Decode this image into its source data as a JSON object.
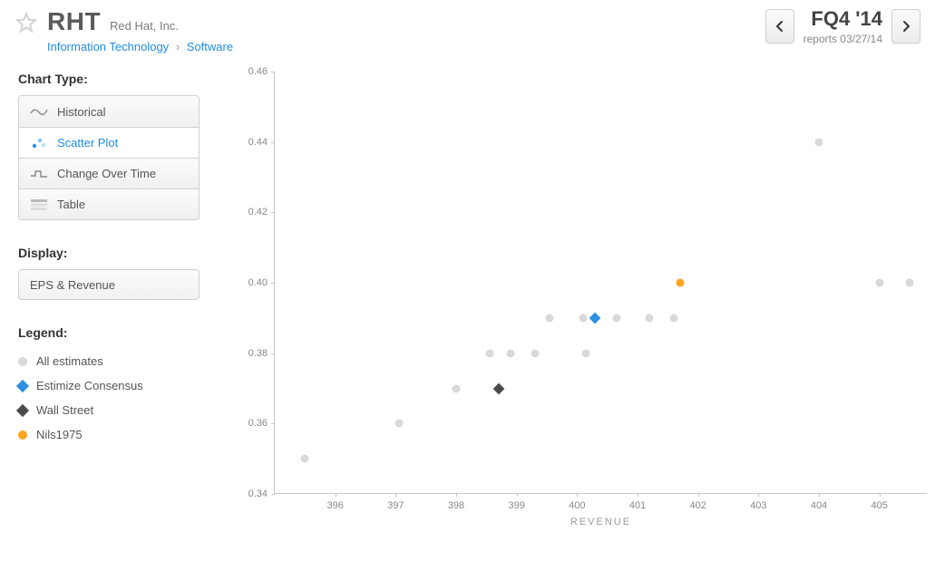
{
  "header": {
    "ticker": "RHT",
    "company": "Red Hat, Inc.",
    "sector": "Information Technology",
    "industry": "Software",
    "period": "FQ4 '14",
    "reports": "reports 03/27/14"
  },
  "side": {
    "chartTypeLabel": "Chart Type:",
    "items": [
      {
        "id": "historical",
        "label": "Historical",
        "active": false
      },
      {
        "id": "scatter",
        "label": "Scatter Plot",
        "active": true
      },
      {
        "id": "change",
        "label": "Change Over Time",
        "active": false
      },
      {
        "id": "table",
        "label": "Table",
        "active": false
      }
    ],
    "displayLabel": "Display:",
    "displayValue": "EPS & Revenue",
    "legendLabel": "Legend:",
    "legend": [
      {
        "label": "All estimates",
        "color": "#d9d9d9",
        "shape": "circle"
      },
      {
        "label": "Estimize Consensus",
        "color": "#2e8fe3",
        "shape": "diamond"
      },
      {
        "label": "Wall Street",
        "color": "#4a4a4a",
        "shape": "diamond"
      },
      {
        "label": "Nils1975",
        "color": "#ffa51f",
        "shape": "circle"
      }
    ]
  },
  "chart": {
    "xLabel": "REVENUE",
    "xlim": [
      395.0,
      405.8
    ],
    "ylim": [
      0.34,
      0.46
    ],
    "xticks": [
      396,
      397,
      398,
      399,
      400,
      401,
      402,
      403,
      404,
      405
    ],
    "yticks": [
      0.34,
      0.36,
      0.38,
      0.4,
      0.42,
      0.44,
      0.46
    ],
    "points": [
      {
        "x": 395.5,
        "y": 0.35,
        "color": "#d9d9d9",
        "shape": "circle"
      },
      {
        "x": 397.05,
        "y": 0.36,
        "color": "#d9d9d9",
        "shape": "circle"
      },
      {
        "x": 398.0,
        "y": 0.37,
        "color": "#d9d9d9",
        "shape": "circle"
      },
      {
        "x": 398.55,
        "y": 0.38,
        "color": "#d9d9d9",
        "shape": "circle"
      },
      {
        "x": 398.9,
        "y": 0.38,
        "color": "#d9d9d9",
        "shape": "circle"
      },
      {
        "x": 399.3,
        "y": 0.38,
        "color": "#d9d9d9",
        "shape": "circle"
      },
      {
        "x": 400.15,
        "y": 0.38,
        "color": "#d9d9d9",
        "shape": "circle"
      },
      {
        "x": 399.55,
        "y": 0.39,
        "color": "#d9d9d9",
        "shape": "circle"
      },
      {
        "x": 400.1,
        "y": 0.39,
        "color": "#d9d9d9",
        "shape": "circle"
      },
      {
        "x": 400.65,
        "y": 0.39,
        "color": "#d9d9d9",
        "shape": "circle"
      },
      {
        "x": 401.2,
        "y": 0.39,
        "color": "#d9d9d9",
        "shape": "circle"
      },
      {
        "x": 401.6,
        "y": 0.39,
        "color": "#d9d9d9",
        "shape": "circle"
      },
      {
        "x": 404.0,
        "y": 0.44,
        "color": "#d9d9d9",
        "shape": "circle"
      },
      {
        "x": 405.0,
        "y": 0.4,
        "color": "#d9d9d9",
        "shape": "circle"
      },
      {
        "x": 405.5,
        "y": 0.4,
        "color": "#d9d9d9",
        "shape": "circle"
      },
      {
        "x": 398.7,
        "y": 0.37,
        "color": "#4a4a4a",
        "shape": "diamond"
      },
      {
        "x": 400.3,
        "y": 0.39,
        "color": "#2e8fe3",
        "shape": "diamond"
      },
      {
        "x": 401.7,
        "y": 0.4,
        "color": "#ffa51f",
        "shape": "circle"
      }
    ],
    "plotBg": "#ffffff",
    "axisColor": "#c7c7c8",
    "tickFontColor": "#888888",
    "tickFontSize": 11
  }
}
